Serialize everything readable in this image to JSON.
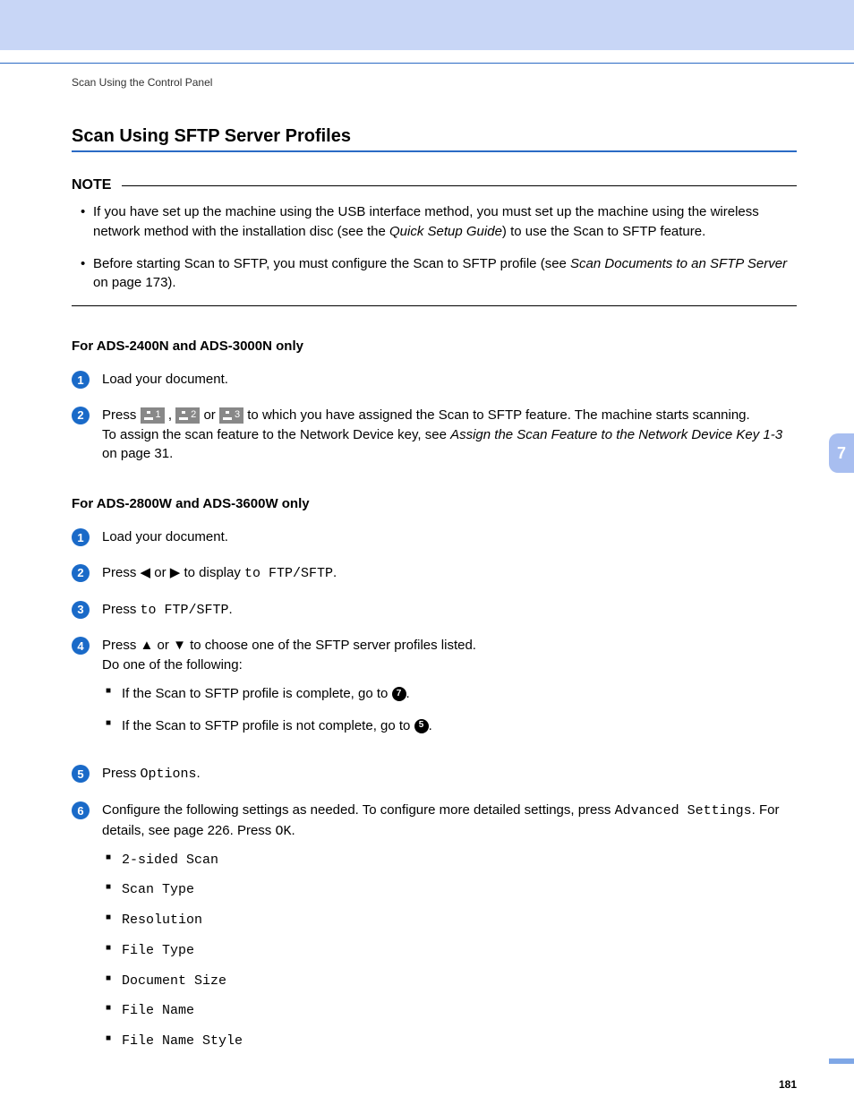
{
  "breadcrumb": "Scan Using the Control Panel",
  "title": "Scan Using SFTP Server Profiles",
  "note": {
    "label": "NOTE",
    "items": [
      {
        "pre": "If you have set up the machine using the USB interface method, you must set up the machine using the wireless network method with the installation disc (see the ",
        "ital": "Quick Setup Guide",
        "post": ") to use the Scan to SFTP feature."
      },
      {
        "pre": "Before starting Scan to SFTP, you must configure the Scan to SFTP profile (see ",
        "ital": "Scan Documents to an SFTP Server",
        "post": " on page 173)."
      }
    ]
  },
  "sectionA": {
    "heading": "For ADS-2400N and ADS-3000N only",
    "step1": "Load your document.",
    "step2": {
      "pre": "Press ",
      "btn1": "1",
      "sep1": " , ",
      "btn2": "2",
      "sep2": " or ",
      "btn3": "3",
      "post": " to which you have assigned the Scan to SFTP feature. The machine starts scanning.",
      "line2pre": "To assign the scan feature to the Network Device key, see ",
      "line2ital": "Assign the Scan Feature to the Network Device Key 1-3",
      "line2post": " on page 31."
    }
  },
  "sectionB": {
    "heading": "For ADS-2800W and ADS-3600W only",
    "step1": "Load your document.",
    "step2": {
      "pre": "Press ",
      "arr1": "◀",
      "mid": " or ",
      "arr2": "▶",
      "post": " to display ",
      "mono": "to FTP/SFTP",
      "end": "."
    },
    "step3": {
      "pre": "Press ",
      "mono": "to FTP/SFTP",
      "end": "."
    },
    "step4": {
      "pre": "Press ",
      "arr1": "▲",
      "mid": " or ",
      "arr2": "▼",
      "post": " to choose one of the SFTP server profiles listed.",
      "line2": "Do one of the following:",
      "sub1pre": "If the Scan to SFTP profile is complete, go to ",
      "sub1ref": "7",
      "sub2pre": "If the Scan to SFTP profile is not complete, go to ",
      "sub2ref": "5"
    },
    "step5": {
      "pre": "Press ",
      "mono": "Options",
      "end": "."
    },
    "step6": {
      "pre": "Configure the following settings as needed. To configure more detailed settings, press ",
      "mono1": "Advanced Settings",
      "mid": ". For details, see page 226. Press ",
      "mono2": "OK",
      "end": ".",
      "settings": [
        "2-sided Scan",
        "Scan Type",
        "Resolution",
        "File Type",
        "Document Size",
        "File Name",
        "File Name Style"
      ]
    }
  },
  "sideTab": "7",
  "pageNumber": "181"
}
